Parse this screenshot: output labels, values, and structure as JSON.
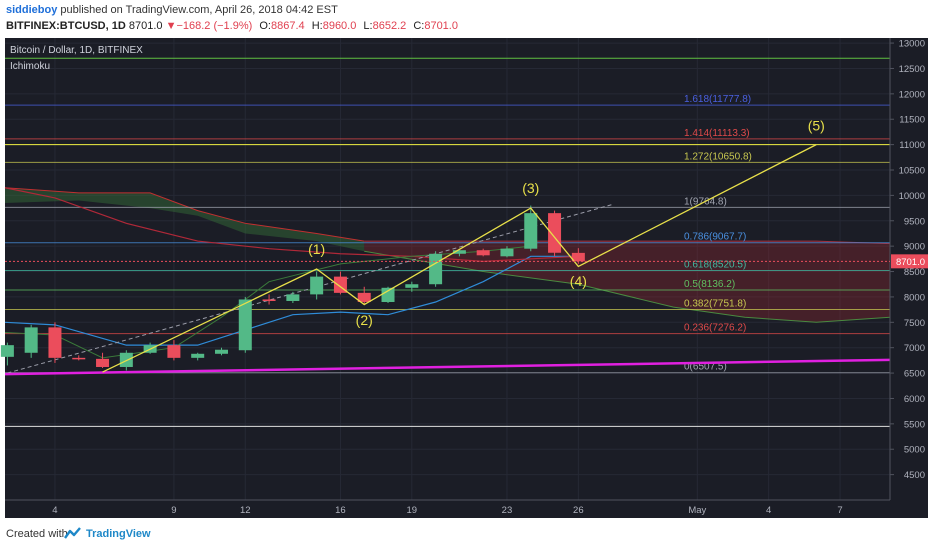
{
  "header": {
    "author": "siddieboy",
    "published": "published on TradingView.com, April 26, 2018 04:42 EST",
    "symbol": "BITFINEX:BTCUSD, 1D",
    "last": "8701.0",
    "change_arrow": "▼",
    "change": "−168.2 (−1.9%)",
    "o_label": "O:",
    "o_value": "8867.4",
    "h_label": "H:",
    "h_value": "8960.0",
    "l_label": "L:",
    "l_value": "8652.2",
    "c_label": "C:",
    "c_value": "8701.0"
  },
  "footer": {
    "created_with": "Created with",
    "brand": "TradingView"
  },
  "colors": {
    "background": "#1b1d26",
    "up": "#53b987",
    "down": "#eb4d5c",
    "fib_text_gray": "#a0a4b0",
    "trend": "#e8e04a",
    "magenta": "#e020e0"
  },
  "chart_data": {
    "type": "candlestick",
    "title": "Bitcoin / Dollar, 1D, BITFINEX",
    "indicator": "Ichimoku",
    "ylim": [
      4000,
      13100
    ],
    "y_ticks": [
      4500,
      5000,
      5500,
      6000,
      6500,
      7000,
      7500,
      8000,
      8500,
      9000,
      9500,
      10000,
      10500,
      11000,
      11500,
      12000,
      12500,
      13000
    ],
    "x_tick_labels": [
      {
        "day": 4,
        "label": "4"
      },
      {
        "day": 9,
        "label": "9"
      },
      {
        "day": 12,
        "label": "12"
      },
      {
        "day": 16,
        "label": "16"
      },
      {
        "day": 19,
        "label": "19"
      },
      {
        "day": 23,
        "label": "23"
      },
      {
        "day": 26,
        "label": "26"
      },
      {
        "day": 31,
        "label": "May"
      },
      {
        "day": 34,
        "label": "4"
      },
      {
        "day": 37,
        "label": "7"
      }
    ],
    "x_range_days": [
      1.9,
      39.1
    ],
    "candles": [
      {
        "day": 2,
        "o": 6820,
        "h": 7100,
        "l": 6650,
        "c": 7050
      },
      {
        "day": 3,
        "o": 6900,
        "h": 7450,
        "l": 6800,
        "c": 7400
      },
      {
        "day": 4,
        "o": 7400,
        "h": 7500,
        "l": 6700,
        "c": 6800
      },
      {
        "day": 5,
        "o": 6800,
        "h": 6850,
        "l": 6750,
        "c": 6780
      },
      {
        "day": 6,
        "o": 6780,
        "h": 6900,
        "l": 6600,
        "c": 6620
      },
      {
        "day": 7,
        "o": 6620,
        "h": 6950,
        "l": 6550,
        "c": 6900
      },
      {
        "day": 8,
        "o": 6900,
        "h": 7100,
        "l": 6880,
        "c": 7050
      },
      {
        "day": 9,
        "o": 7050,
        "h": 7150,
        "l": 6750,
        "c": 6800
      },
      {
        "day": 10,
        "o": 6800,
        "h": 6900,
        "l": 6750,
        "c": 6880
      },
      {
        "day": 11,
        "o": 6880,
        "h": 7000,
        "l": 6850,
        "c": 6960
      },
      {
        "day": 12,
        "o": 6950,
        "h": 8000,
        "l": 6900,
        "c": 7950
      },
      {
        "day": 13,
        "o": 7950,
        "h": 8050,
        "l": 7850,
        "c": 7920
      },
      {
        "day": 14,
        "o": 7920,
        "h": 8100,
        "l": 7880,
        "c": 8050
      },
      {
        "day": 15,
        "o": 8050,
        "h": 8500,
        "l": 7950,
        "c": 8400
      },
      {
        "day": 16,
        "o": 8400,
        "h": 8500,
        "l": 8050,
        "c": 8080
      },
      {
        "day": 17,
        "o": 8080,
        "h": 8200,
        "l": 7850,
        "c": 7900
      },
      {
        "day": 18,
        "o": 7900,
        "h": 8200,
        "l": 7880,
        "c": 8180
      },
      {
        "day": 19,
        "o": 8180,
        "h": 8300,
        "l": 8100,
        "c": 8250
      },
      {
        "day": 20,
        "o": 8250,
        "h": 8900,
        "l": 8200,
        "c": 8850
      },
      {
        "day": 21,
        "o": 8850,
        "h": 8950,
        "l": 8800,
        "c": 8920
      },
      {
        "day": 22,
        "o": 8920,
        "h": 8950,
        "l": 8800,
        "c": 8820
      },
      {
        "day": 23,
        "o": 8800,
        "h": 9000,
        "l": 8780,
        "c": 8950
      },
      {
        "day": 24,
        "o": 8950,
        "h": 9800,
        "l": 8900,
        "c": 9650
      },
      {
        "day": 25,
        "o": 9650,
        "h": 9700,
        "l": 8800,
        "c": 8870
      },
      {
        "day": 26,
        "o": 8867.4,
        "h": 8960,
        "l": 8652.2,
        "c": 8701
      }
    ],
    "last_price_label": "8701.0",
    "last_price": 8701,
    "fib_levels": [
      {
        "ratio": "0",
        "value": 6507.5,
        "text": "0(6507.5)",
        "color": "#a0a4b0"
      },
      {
        "ratio": "0.236",
        "value": 7276.2,
        "text": "0.236(7276.2)",
        "color": "#e04a4a"
      },
      {
        "ratio": "0.382",
        "value": 7751.8,
        "text": "0.382(7751.8)",
        "color": "#c8c850"
      },
      {
        "ratio": "0.5",
        "value": 8136.2,
        "text": "0.5(8136.2)",
        "color": "#60c060"
      },
      {
        "ratio": "0.618",
        "value": 8520.5,
        "text": "0.618(8520.5)",
        "color": "#40b8a0"
      },
      {
        "ratio": "0.786",
        "value": 9067.7,
        "text": "0.786(9067.7)",
        "color": "#4a90e0"
      },
      {
        "ratio": "1",
        "value": 9764.8,
        "text": "1(9764.8)",
        "color": "#a0a4b0"
      },
      {
        "ratio": "1.272",
        "value": 10650.8,
        "text": "1.272(10650.8)",
        "color": "#c8c850"
      },
      {
        "ratio": "1.414",
        "value": 11113.3,
        "text": "1.414(11113.3)",
        "color": "#e04a4a"
      },
      {
        "ratio": "1.618",
        "value": 11777.8,
        "text": "1.618(11777.8)",
        "color": "#4a60e0"
      }
    ],
    "horizontal_lines": [
      {
        "value": 12700,
        "color": "#60c040"
      },
      {
        "value": 11000,
        "color": "#f0f040"
      },
      {
        "value": 5450,
        "color": "#e0e0e0"
      }
    ],
    "elliott_waves": [
      {
        "label": "(1)",
        "day": 15,
        "value": 8550,
        "text_day": 15,
        "text_value": 8850
      },
      {
        "label": "(2)",
        "day": 17,
        "value": 7850,
        "text_day": 17,
        "text_value": 7450
      },
      {
        "label": "(3)",
        "day": 24,
        "value": 9750,
        "text_day": 24,
        "text_value": 10050
      },
      {
        "label": "(4)",
        "day": 26,
        "value": 8600,
        "text_day": 26,
        "text_value": 8220
      },
      {
        "label": "(5)",
        "day": 36,
        "value": 11000,
        "text_day": 36,
        "text_value": 11280
      }
    ],
    "wave_path": [
      {
        "day": 6,
        "value": 6520
      },
      {
        "day": 15,
        "value": 8550
      },
      {
        "day": 17,
        "value": 7850
      },
      {
        "day": 24,
        "value": 9750
      },
      {
        "day": 26,
        "value": 8600
      },
      {
        "day": 36,
        "value": 11000
      }
    ],
    "dashed_trend": [
      {
        "day": 2,
        "value": 6500
      },
      {
        "day": 27.5,
        "value": 9830
      }
    ],
    "magenta_trend": [
      {
        "day": 1.9,
        "value": 6480
      },
      {
        "day": 39.1,
        "value": 6760
      }
    ],
    "ichimoku_cloud_old": [
      {
        "day": 1.9,
        "top": 10150,
        "bottom": 9850
      },
      {
        "day": 5,
        "top": 10050,
        "bottom": 9900
      },
      {
        "day": 8,
        "top": 10050,
        "bottom": 9750
      },
      {
        "day": 10,
        "top": 9700,
        "bottom": 9600
      },
      {
        "day": 12,
        "top": 9450,
        "bottom": 9250
      },
      {
        "day": 15,
        "top": 9250,
        "bottom": 9100
      },
      {
        "day": 17,
        "top": 9100,
        "bottom": 8900
      }
    ],
    "ichimoku_cloud_new": [
      {
        "day": 17,
        "top": 9100,
        "bottom": 8900
      },
      {
        "day": 22,
        "top": 9100,
        "bottom": 8500
      },
      {
        "day": 26,
        "top": 9100,
        "bottom": 8250
      },
      {
        "day": 30,
        "top": 9100,
        "bottom": 7800
      },
      {
        "day": 33,
        "top": 9100,
        "bottom": 7600
      },
      {
        "day": 36,
        "top": 9100,
        "bottom": 7500
      },
      {
        "day": 39.1,
        "top": 9050,
        "bottom": 7600
      }
    ],
    "conversion_line": [
      {
        "day": 1.9,
        "value": 7500
      },
      {
        "day": 4,
        "value": 7450
      },
      {
        "day": 7,
        "value": 7050
      },
      {
        "day": 10,
        "value": 7050
      },
      {
        "day": 12,
        "value": 7350
      },
      {
        "day": 14,
        "value": 7650
      },
      {
        "day": 16,
        "value": 7700
      },
      {
        "day": 18,
        "value": 7650
      },
      {
        "day": 20,
        "value": 7900
      },
      {
        "day": 22,
        "value": 8300
      },
      {
        "day": 24,
        "value": 8800
      },
      {
        "day": 26,
        "value": 8800
      }
    ],
    "base_line": [
      {
        "day": 1.9,
        "value": 10150
      },
      {
        "day": 4,
        "value": 9950
      },
      {
        "day": 7,
        "value": 9450
      },
      {
        "day": 10,
        "value": 9100
      },
      {
        "day": 13,
        "value": 8950
      },
      {
        "day": 16,
        "value": 8850
      },
      {
        "day": 19,
        "value": 8800
      },
      {
        "day": 22,
        "value": 8700
      },
      {
        "day": 26,
        "value": 8800
      }
    ],
    "lagging_span": [
      {
        "day": 1.9,
        "value": 7300
      },
      {
        "day": 4,
        "value": 7250
      },
      {
        "day": 6,
        "value": 6800
      },
      {
        "day": 9,
        "value": 7000
      },
      {
        "day": 11,
        "value": 7600
      },
      {
        "day": 13,
        "value": 8300
      },
      {
        "day": 16,
        "value": 8650
      },
      {
        "day": 19,
        "value": 8800
      },
      {
        "day": 22,
        "value": 8900
      },
      {
        "day": 24,
        "value": 9000
      }
    ]
  }
}
